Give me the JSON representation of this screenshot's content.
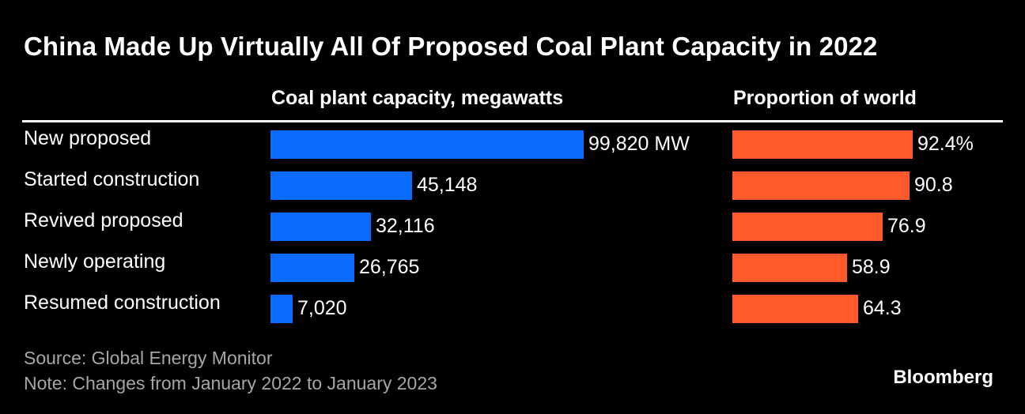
{
  "title": "China Made Up Virtually All Of Proposed Coal Plant Capacity in 2022",
  "chart_data": [
    {
      "type": "bar",
      "orientation": "horizontal",
      "title": "Coal plant capacity, megawatts",
      "categories": [
        "New proposed",
        "Started construction",
        "Revived proposed",
        "Newly operating",
        "Resumed construction"
      ],
      "values": [
        99820,
        45148,
        32116,
        26765,
        7020
      ],
      "value_labels": [
        "99,820 MW",
        "45,148",
        "32,116",
        "26,765",
        "7,020"
      ],
      "color": "#0a6cff"
    },
    {
      "type": "bar",
      "orientation": "horizontal",
      "title": "Proportion of world",
      "categories": [
        "New proposed",
        "Started construction",
        "Revived proposed",
        "Newly operating",
        "Resumed construction"
      ],
      "values": [
        92.4,
        90.8,
        76.9,
        58.9,
        64.3
      ],
      "value_labels": [
        "92.4%",
        "90.8",
        "76.9",
        "58.9",
        "64.3"
      ],
      "color": "#ff5a2a"
    }
  ],
  "footer": {
    "source": "Source: Global Energy Monitor",
    "note": "Note: Changes from January 2022 to January 2023"
  },
  "brand": "Bloomberg"
}
